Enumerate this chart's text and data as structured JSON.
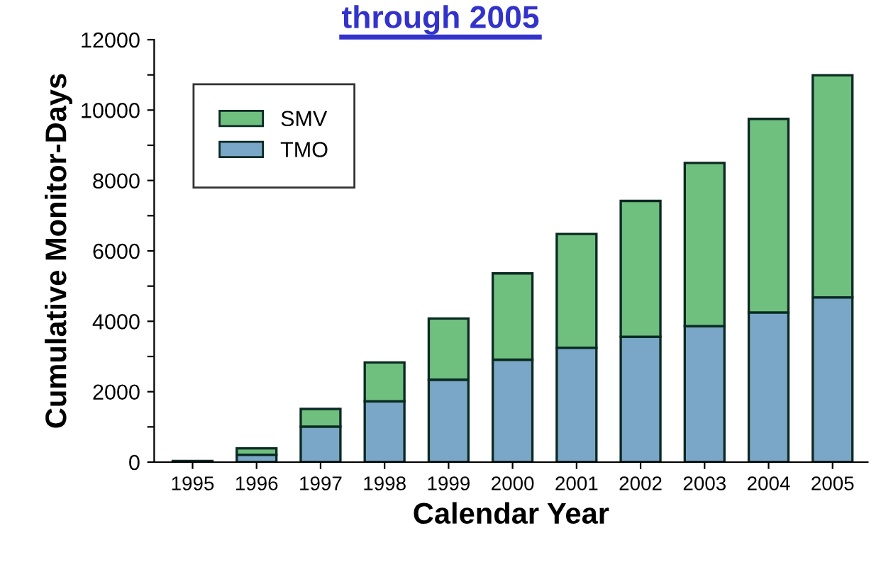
{
  "chart_data": {
    "type": "bar",
    "stacked": true,
    "title": "through 2005",
    "xlabel": "Calendar Year",
    "ylabel": "Cumulative Monitor-Days",
    "categories": [
      "1995",
      "1996",
      "1997",
      "1998",
      "1999",
      "2000",
      "2001",
      "2002",
      "2003",
      "2004",
      "2005"
    ],
    "series": [
      {
        "name": "TMO",
        "color": "#7aa7c7",
        "values": [
          null,
          210,
          1010,
          1730,
          2340,
          2910,
          3250,
          3560,
          3860,
          4250,
          4680
        ]
      },
      {
        "name": "SMV",
        "color": "#6fbf7f",
        "values": [
          30,
          180,
          500,
          1100,
          1740,
          2450,
          3230,
          3860,
          4640,
          5500,
          6310
        ]
      }
    ],
    "ylim": [
      0,
      12000
    ],
    "yticks": [
      0,
      {
        "value": 1000,
        "label": null
      },
      2000,
      {
        "value": 3000,
        "label": null
      },
      4000,
      {
        "value": 5000,
        "label": null
      },
      6000,
      {
        "value": 7000,
        "label": null
      },
      8000,
      {
        "value": 9000,
        "label": null
      },
      10000,
      {
        "value": 11000,
        "label": null
      },
      12000
    ],
    "grid": false,
    "legend": "top left"
  }
}
